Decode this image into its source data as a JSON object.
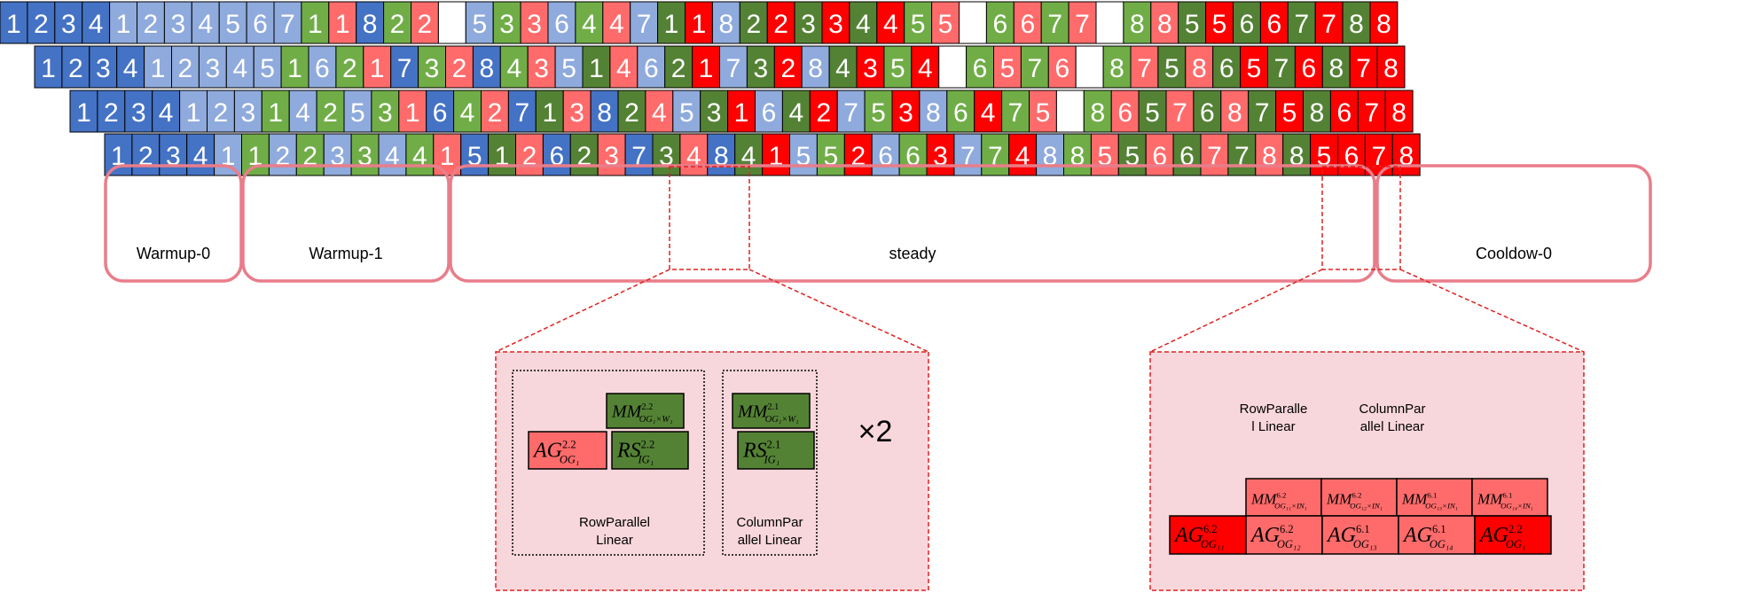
{
  "colors": {
    "blue_dark": "#4472C4",
    "blue_light": "#8FAADC",
    "green_mid": "#70AD47",
    "green_dark": "#548235",
    "red_light": "#FF6B6B",
    "red": "#FF0000",
    "white": "#FFFFFF",
    "phase_border": "#E97D8A",
    "zoom_fill": "#F8D7DC",
    "zoom_border": "#E02020"
  },
  "pipeline_rows": [
    {
      "name": "stage-1",
      "cells": [
        [
          "1",
          "bd"
        ],
        [
          "2",
          "bd"
        ],
        [
          "3",
          "bd"
        ],
        [
          "4",
          "bd"
        ],
        [
          "1",
          "bl"
        ],
        [
          "2",
          "bl"
        ],
        [
          "3",
          "bl"
        ],
        [
          "4",
          "bl"
        ],
        [
          "5",
          "bl"
        ],
        [
          "6",
          "bl"
        ],
        [
          "7",
          "bl"
        ],
        [
          "1",
          "gm"
        ],
        [
          "1",
          "rl"
        ],
        [
          "8",
          "bd"
        ],
        [
          "2",
          "gm"
        ],
        [
          "2",
          "rl"
        ],
        [
          "",
          "w"
        ],
        [
          "5",
          "bl"
        ],
        [
          "3",
          "gm"
        ],
        [
          "3",
          "rl"
        ],
        [
          "6",
          "bl"
        ],
        [
          "4",
          "gm"
        ],
        [
          "4",
          "rl"
        ],
        [
          "7",
          "bl"
        ],
        [
          "1",
          "gd"
        ],
        [
          "1",
          "r"
        ],
        [
          "8",
          "bl"
        ],
        [
          "2",
          "gd"
        ],
        [
          "2",
          "r"
        ],
        [
          "3",
          "gd"
        ],
        [
          "3",
          "r"
        ],
        [
          "4",
          "gd"
        ],
        [
          "4",
          "r"
        ],
        [
          "5",
          "gm"
        ],
        [
          "5",
          "rl"
        ],
        [
          "",
          "w"
        ],
        [
          "6",
          "gm"
        ],
        [
          "6",
          "rl"
        ],
        [
          "7",
          "gm"
        ],
        [
          "7",
          "rl"
        ],
        [
          "",
          "w"
        ],
        [
          "8",
          "gm"
        ],
        [
          "8",
          "rl"
        ],
        [
          "5",
          "gd"
        ],
        [
          "5",
          "r"
        ],
        [
          "6",
          "gd"
        ],
        [
          "6",
          "r"
        ],
        [
          "7",
          "gd"
        ],
        [
          "7",
          "r"
        ],
        [
          "8",
          "gd"
        ],
        [
          "8",
          "r"
        ]
      ]
    },
    {
      "name": "stage-2",
      "cells": [
        [
          "1",
          "bd"
        ],
        [
          "2",
          "bd"
        ],
        [
          "3",
          "bd"
        ],
        [
          "4",
          "bd"
        ],
        [
          "1",
          "bl"
        ],
        [
          "2",
          "bl"
        ],
        [
          "3",
          "bl"
        ],
        [
          "4",
          "bl"
        ],
        [
          "5",
          "bl"
        ],
        [
          "1",
          "gm"
        ],
        [
          "6",
          "bl"
        ],
        [
          "2",
          "gm"
        ],
        [
          "1",
          "rl"
        ],
        [
          "7",
          "bd"
        ],
        [
          "3",
          "gm"
        ],
        [
          "2",
          "rl"
        ],
        [
          "8",
          "bd"
        ],
        [
          "4",
          "gm"
        ],
        [
          "3",
          "rl"
        ],
        [
          "5",
          "bl"
        ],
        [
          "1",
          "gd"
        ],
        [
          "4",
          "rl"
        ],
        [
          "6",
          "bl"
        ],
        [
          "2",
          "gd"
        ],
        [
          "1",
          "r"
        ],
        [
          "7",
          "bl"
        ],
        [
          "3",
          "gd"
        ],
        [
          "2",
          "r"
        ],
        [
          "8",
          "bl"
        ],
        [
          "4",
          "gd"
        ],
        [
          "3",
          "r"
        ],
        [
          "5",
          "gm"
        ],
        [
          "4",
          "r"
        ],
        [
          "",
          "w"
        ],
        [
          "6",
          "gm"
        ],
        [
          "5",
          "rl"
        ],
        [
          "7",
          "gm"
        ],
        [
          "6",
          "rl"
        ],
        [
          "",
          "w"
        ],
        [
          "8",
          "gm"
        ],
        [
          "7",
          "rl"
        ],
        [
          "5",
          "gd"
        ],
        [
          "8",
          "rl"
        ],
        [
          "6",
          "gd"
        ],
        [
          "5",
          "r"
        ],
        [
          "7",
          "gd"
        ],
        [
          "6",
          "r"
        ],
        [
          "8",
          "gd"
        ],
        [
          "7",
          "r"
        ],
        [
          "8",
          "r"
        ]
      ]
    },
    {
      "name": "stage-3",
      "cells": [
        [
          "1",
          "bd"
        ],
        [
          "2",
          "bd"
        ],
        [
          "3",
          "bd"
        ],
        [
          "4",
          "bd"
        ],
        [
          "1",
          "bl"
        ],
        [
          "2",
          "bl"
        ],
        [
          "3",
          "bl"
        ],
        [
          "1",
          "gm"
        ],
        [
          "4",
          "bl"
        ],
        [
          "2",
          "gm"
        ],
        [
          "5",
          "bl"
        ],
        [
          "3",
          "gm"
        ],
        [
          "1",
          "rl"
        ],
        [
          "6",
          "bd"
        ],
        [
          "4",
          "gm"
        ],
        [
          "2",
          "rl"
        ],
        [
          "7",
          "bd"
        ],
        [
          "1",
          "gd"
        ],
        [
          "3",
          "rl"
        ],
        [
          "8",
          "bd"
        ],
        [
          "2",
          "gd"
        ],
        [
          "4",
          "rl"
        ],
        [
          "5",
          "bl"
        ],
        [
          "3",
          "gd"
        ],
        [
          "1",
          "r"
        ],
        [
          "6",
          "bl"
        ],
        [
          "4",
          "gd"
        ],
        [
          "2",
          "r"
        ],
        [
          "7",
          "bl"
        ],
        [
          "5",
          "gm"
        ],
        [
          "3",
          "r"
        ],
        [
          "8",
          "bl"
        ],
        [
          "6",
          "gm"
        ],
        [
          "4",
          "r"
        ],
        [
          "7",
          "gm"
        ],
        [
          "5",
          "rl"
        ],
        [
          "",
          "w"
        ],
        [
          "8",
          "gm"
        ],
        [
          "6",
          "rl"
        ],
        [
          "5",
          "gd"
        ],
        [
          "7",
          "rl"
        ],
        [
          "6",
          "gd"
        ],
        [
          "8",
          "rl"
        ],
        [
          "7",
          "gd"
        ],
        [
          "5",
          "r"
        ],
        [
          "8",
          "gd"
        ],
        [
          "6",
          "r"
        ],
        [
          "7",
          "r"
        ],
        [
          "8",
          "r"
        ]
      ]
    },
    {
      "name": "stage-4",
      "cells": [
        [
          "1",
          "bd"
        ],
        [
          "2",
          "bd"
        ],
        [
          "3",
          "bd"
        ],
        [
          "4",
          "bd"
        ],
        [
          "1",
          "bl"
        ],
        [
          "1",
          "gm"
        ],
        [
          "2",
          "bl"
        ],
        [
          "2",
          "gm"
        ],
        [
          "3",
          "bl"
        ],
        [
          "3",
          "gm"
        ],
        [
          "4",
          "bl"
        ],
        [
          "4",
          "gm"
        ],
        [
          "1",
          "rl"
        ],
        [
          "5",
          "bd"
        ],
        [
          "1",
          "gd"
        ],
        [
          "2",
          "rl"
        ],
        [
          "6",
          "bd"
        ],
        [
          "2",
          "gd"
        ],
        [
          "3",
          "rl"
        ],
        [
          "7",
          "bd"
        ],
        [
          "3",
          "gd"
        ],
        [
          "4",
          "rl"
        ],
        [
          "8",
          "bd"
        ],
        [
          "4",
          "gd"
        ],
        [
          "1",
          "r"
        ],
        [
          "5",
          "bl"
        ],
        [
          "5",
          "gm"
        ],
        [
          "2",
          "r"
        ],
        [
          "6",
          "bl"
        ],
        [
          "6",
          "gm"
        ],
        [
          "3",
          "r"
        ],
        [
          "7",
          "bl"
        ],
        [
          "7",
          "gm"
        ],
        [
          "4",
          "r"
        ],
        [
          "8",
          "bl"
        ],
        [
          "8",
          "gm"
        ],
        [
          "5",
          "rl"
        ],
        [
          "5",
          "gd"
        ],
        [
          "6",
          "rl"
        ],
        [
          "6",
          "gd"
        ],
        [
          "7",
          "rl"
        ],
        [
          "7",
          "gd"
        ],
        [
          "8",
          "rl"
        ],
        [
          "8",
          "gd"
        ],
        [
          "5",
          "r"
        ],
        [
          "6",
          "r"
        ],
        [
          "7",
          "r"
        ],
        [
          "8",
          "r"
        ]
      ]
    }
  ],
  "phases": [
    {
      "name": "warmup-0",
      "label": "Warmup-0"
    },
    {
      "name": "warmup-1",
      "label": "Warmup-1"
    },
    {
      "name": "steady",
      "label": "steady"
    },
    {
      "name": "cooldown-0",
      "label": "Cooldow-0"
    }
  ],
  "zoom_left": {
    "multiplier": "×2",
    "row_group_label": [
      "RowParallel",
      "Linear"
    ],
    "col_group_label": [
      "ColumnPar",
      "allel Linear"
    ],
    "ops": [
      {
        "name": "mm-og1-w1-row",
        "main": "MM",
        "sup": "2.2",
        "sub": "OG₁×W₁",
        "color": "gd"
      },
      {
        "name": "ag-og1-row",
        "main": "AG",
        "sup": "2.2",
        "sub": "OG₁",
        "color": "rl"
      },
      {
        "name": "rs-ig1-row",
        "main": "RS",
        "sup": "2.2",
        "sub": "IG₁",
        "color": "gd"
      },
      {
        "name": "mm-og1-w1-col",
        "main": "MM",
        "sup": "2.1",
        "sub": "OG₁×W₁",
        "color": "gd"
      },
      {
        "name": "rs-ig1-col",
        "main": "RS",
        "sup": "2.1",
        "sub": "IG₁",
        "color": "gd"
      }
    ]
  },
  "zoom_right": {
    "row_group_label": [
      "RowParalle",
      "l Linear"
    ],
    "col_group_label": [
      "ColumnPar",
      "allel Linear"
    ],
    "top_ops": [
      {
        "name": "mm-og11",
        "main": "MM",
        "sup": "6.2",
        "sub": "OG₁₁×IN₁"
      },
      {
        "name": "mm-og12",
        "main": "MM",
        "sup": "6.2",
        "sub": "OG₁₂×IN₁"
      },
      {
        "name": "mm-og13",
        "main": "MM",
        "sup": "6.1",
        "sub": "OG₁₃×IN₁"
      },
      {
        "name": "mm-og14",
        "main": "MM",
        "sup": "6.1",
        "sub": "OG₁₄×IN₁"
      }
    ],
    "bottom_ops": [
      {
        "name": "ag-og11",
        "main": "AG",
        "sup": "6.2",
        "sub": "OG₁₁"
      },
      {
        "name": "ag-og12",
        "main": "AG",
        "sup": "6.2",
        "sub": "OG₁₂"
      },
      {
        "name": "ag-og13",
        "main": "AG",
        "sup": "6.1",
        "sub": "OG₁₃"
      },
      {
        "name": "ag-og14",
        "main": "AG",
        "sup": "6.1",
        "sub": "OG₁₄"
      },
      {
        "name": "ag-og1",
        "main": "AG",
        "sup": "2.2",
        "sub": "OG₁"
      }
    ]
  }
}
